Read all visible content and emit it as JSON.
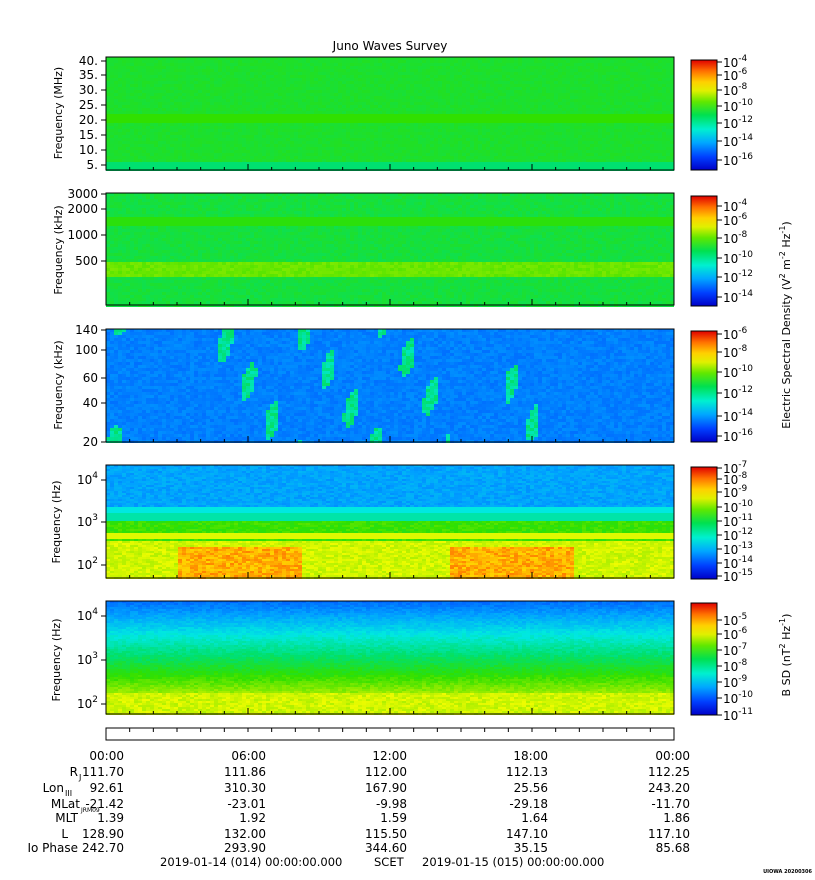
{
  "title": "Juno Waves Survey",
  "colors": {
    "cmap": [
      "#0000c0",
      "#0050ff",
      "#00a0ff",
      "#00e8e0",
      "#00e070",
      "#30e000",
      "#b0f000",
      "#ffff00",
      "#ffb000",
      "#ff5000",
      "#e00000"
    ]
  },
  "chart_data": [
    {
      "type": "heatmap",
      "panel": "HFR high",
      "ylabel": "Frequency (MHz)",
      "yticks": [
        "40.",
        "35.",
        "30.",
        "25.",
        "20.",
        "15.",
        "10.",
        "5."
      ],
      "ylim": [
        3,
        41
      ],
      "colorbar": {
        "ticks": [
          "-4",
          "-6",
          "-8",
          "-10",
          "-12",
          "-14",
          "-16"
        ]
      }
    },
    {
      "type": "heatmap",
      "panel": "HFR low",
      "ylabel": "Frequency (kHz)",
      "yticks": [
        "3000",
        "2000",
        "1000",
        "500"
      ],
      "ylim": [
        140,
        3000
      ],
      "yscale": "log",
      "colorbar": {
        "ticks": [
          "-4",
          "-6",
          "-8",
          "-10",
          "-12",
          "-14"
        ]
      }
    },
    {
      "type": "heatmap",
      "panel": "LFR high",
      "ylabel": "Frequency (kHz)",
      "yticks": [
        "140",
        "100",
        "60",
        "40",
        "20"
      ],
      "ylim": [
        20,
        140
      ],
      "yscale": "log",
      "colorbar": {
        "ticks": [
          "-6",
          "-8",
          "-10",
          "-12",
          "-14",
          "-16"
        ]
      }
    },
    {
      "type": "heatmap",
      "panel": "LFR low E",
      "ylabel": "Frequency (Hz)",
      "yticks": [
        "4",
        "3",
        "2"
      ],
      "yscale": "log",
      "colorbar": {
        "ticks": [
          "-7",
          "-8",
          "-9",
          "-10",
          "-11",
          "-12",
          "-13",
          "-14",
          "-15"
        ]
      }
    },
    {
      "type": "heatmap",
      "panel": "LFR low B",
      "ylabel": "Frequency (Hz)",
      "yticks": [
        "4",
        "3",
        "2"
      ],
      "yscale": "log",
      "colorbar": {
        "ticks": [
          "-5",
          "-6",
          "-7",
          "-8",
          "-9",
          "-10",
          "-11"
        ]
      }
    }
  ],
  "colorbar_label_e": "Electric Spectral Density (V",
  "colorbar_label_b": "B SD (nT",
  "ten": "10",
  "ephem": {
    "times": [
      "00:00",
      "06:00",
      "12:00",
      "18:00",
      "00:00"
    ],
    "rows": [
      {
        "label": "R",
        "sub": "J",
        "values": [
          "111.70",
          "111.86",
          "112.00",
          "112.13",
          "112.25"
        ]
      },
      {
        "label": "Lon",
        "sub": "III",
        "values": [
          "92.61",
          "310.30",
          "167.90",
          "25.56",
          "243.20"
        ]
      },
      {
        "label": "MLat",
        "sub": "JRM09",
        "values": [
          "-21.42",
          "-23.01",
          "-9.98",
          "-29.18",
          "-11.70"
        ]
      },
      {
        "label": "MLT",
        "sub": "",
        "values": [
          "1.39",
          "1.92",
          "1.59",
          "1.64",
          "1.86"
        ]
      },
      {
        "label": "L",
        "sub": "",
        "values": [
          "128.90",
          "132.00",
          "115.50",
          "147.10",
          "117.10"
        ]
      },
      {
        "label": "Io Phase",
        "sub": "",
        "values": [
          "242.70",
          "293.90",
          "344.60",
          "35.15",
          "85.68"
        ]
      }
    ]
  },
  "footer": {
    "start": "2019-01-14 (014) 00:00:00.000",
    "scet": "SCET",
    "end": "2019-01-15 (015) 00:00:00.000"
  },
  "credit": "UIOWA 20200306"
}
